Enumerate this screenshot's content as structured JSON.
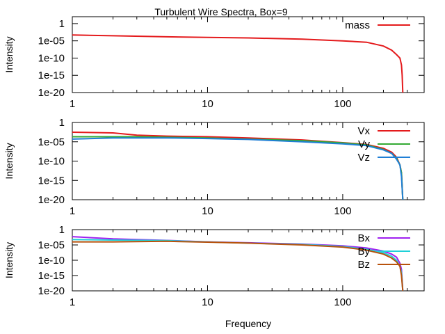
{
  "chart_data": [
    {
      "type": "line",
      "title": "Turbulent Wire Spectra, Box=9",
      "xlabel": "",
      "ylabel": "Intensity",
      "x_scale": "log",
      "y_scale": "log",
      "xlim": [
        1,
        400
      ],
      "ylim": [
        1e-20,
        100
      ],
      "x_ticks": [
        "1",
        "10",
        "100"
      ],
      "y_ticks": [
        "1",
        "1e-05",
        "1e-10",
        "1e-15",
        "1e-20"
      ],
      "legend_position": "top-right",
      "series": [
        {
          "name": "mass",
          "color": "#e41a1c",
          "x": [
            1,
            2,
            5,
            10,
            20,
            50,
            100,
            150,
            200,
            230,
            250,
            265,
            272,
            275,
            278
          ],
          "y": [
            0.0005,
            0.0003,
            0.00015,
            0.0001,
            7e-05,
            3e-05,
            1e-05,
            4e-06,
            3e-07,
            2e-08,
            1e-09,
            1e-10,
            1e-12,
            1e-15,
            1e-20
          ]
        }
      ]
    },
    {
      "type": "line",
      "title": "",
      "xlabel": "",
      "ylabel": "Intensity",
      "x_scale": "log",
      "y_scale": "log",
      "xlim": [
        1,
        400
      ],
      "ylim": [
        1e-20,
        1
      ],
      "x_ticks": [
        "1",
        "10",
        "100"
      ],
      "y_ticks": [
        "1",
        "1e-05",
        "1e-10",
        "1e-15",
        "1e-20"
      ],
      "legend_position": "top-right",
      "series": [
        {
          "name": "Vx",
          "color": "#e41a1c",
          "x": [
            1,
            2,
            3,
            5,
            10,
            20,
            50,
            100,
            150,
            200,
            230,
            250,
            265,
            272,
            278
          ],
          "y": [
            0.003,
            0.002,
            0.0005,
            0.0003,
            0.0002,
            0.0001,
            3e-05,
            6e-06,
            2e-06,
            2e-07,
            2e-08,
            1e-09,
            1e-11,
            1e-13,
            1e-20
          ]
        },
        {
          "name": "Vy",
          "color": "#33aa33",
          "x": [
            1,
            2,
            3,
            5,
            10,
            20,
            50,
            100,
            150,
            200,
            230,
            250,
            265,
            272,
            278
          ],
          "y": [
            0.0002,
            0.0002,
            0.0002,
            0.00015,
            0.0001,
            5e-05,
            2e-05,
            5e-06,
            1.5e-06,
            1e-07,
            1e-08,
            5e-10,
            1e-11,
            1e-13,
            1e-20
          ]
        },
        {
          "name": "Vz",
          "color": "#1f7fd6",
          "x": [
            1,
            2,
            3,
            5,
            10,
            20,
            50,
            100,
            150,
            200,
            230,
            250,
            265,
            272,
            278
          ],
          "y": [
            5e-05,
            0.0001,
            0.0001,
            0.0001,
            7e-05,
            4e-05,
            1e-05,
            3e-06,
            1e-06,
            8e-08,
            1e-08,
            3e-10,
            1e-11,
            1e-14,
            1e-20
          ]
        }
      ]
    },
    {
      "type": "line",
      "title": "",
      "xlabel": "Frequency",
      "ylabel": "Intensity",
      "x_scale": "log",
      "y_scale": "log",
      "xlim": [
        1,
        400
      ],
      "ylim": [
        1e-20,
        1
      ],
      "x_ticks": [
        "1",
        "10",
        "100"
      ],
      "y_ticks": [
        "1",
        "1e-05",
        "1e-10",
        "1e-15",
        "1e-20"
      ],
      "legend_position": "top-right",
      "series": [
        {
          "name": "Bx",
          "color": "#a020f0",
          "x": [
            1,
            2,
            5,
            10,
            20,
            50,
            100,
            150,
            200,
            230,
            250,
            265,
            272,
            278
          ],
          "y": [
            0.005,
            0.001,
            0.0003,
            0.0001,
            5e-05,
            2e-05,
            5e-06,
            1e-06,
            1e-07,
            1e-08,
            1e-09,
            1e-11,
            1e-13,
            1e-20
          ]
        },
        {
          "name": "By",
          "color": "#20d0d8",
          "x": [
            1,
            2,
            5,
            10,
            20,
            50,
            100,
            150,
            200,
            230,
            250,
            265,
            272,
            278
          ],
          "y": [
            0.0006,
            0.0004,
            0.00025,
            9e-05,
            4e-05,
            1.5e-05,
            3e-06,
            4e-07,
            3e-08,
            2e-09,
            1e-10,
            1e-12,
            1e-14,
            1e-20
          ]
        },
        {
          "name": "Bz",
          "color": "#b8520c",
          "x": [
            1,
            2,
            5,
            10,
            20,
            50,
            100,
            150,
            200,
            230,
            250,
            265,
            272,
            278
          ],
          "y": [
            0.0001,
            0.0001,
            0.00015,
            8e-05,
            4e-05,
            1e-05,
            2e-06,
            2e-07,
            1e-08,
            5e-10,
            3e-11,
            1e-12,
            1e-15,
            1e-20
          ]
        }
      ]
    }
  ]
}
